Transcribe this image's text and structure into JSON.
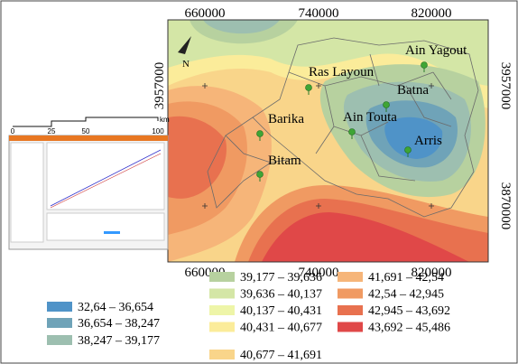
{
  "map": {
    "north": "N",
    "top_ticks": [
      660000,
      740000,
      820000
    ],
    "bottom_ticks": [
      660000,
      740000,
      820000
    ],
    "left_ticks": [
      3957000
    ],
    "right_ticks": [
      3957000,
      3870000
    ],
    "cities": [
      "Ain Yagout",
      "Ras Layoun",
      "Batna",
      "Barika",
      "Ain Touta",
      "Arris",
      "Bitam"
    ],
    "scale_bar": {
      "ticks": [
        0,
        25,
        50,
        100
      ],
      "unit": "km"
    },
    "legend": [
      {
        "label": "32,64 – 36,654",
        "color": "#4f93c8"
      },
      {
        "label": "36,654 – 38,247",
        "color": "#6fa3b8"
      },
      {
        "label": "38,247 – 39,177",
        "color": "#9dbfb0"
      },
      {
        "label": "39,177 – 39,636",
        "color": "#b7d19f"
      },
      {
        "label": "39,636 – 40,137",
        "color": "#d4e6a6"
      },
      {
        "label": "40,137 – 40,431",
        "color": "#eef5a8"
      },
      {
        "label": "40,431 – 40,677",
        "color": "#fbec9a"
      },
      {
        "label": "40,677 – 41,691",
        "color": "#f9d58a"
      },
      {
        "label": "41,691 – 42,54",
        "color": "#f6b579"
      },
      {
        "label": "42,54 – 42,945",
        "color": "#f09a62"
      },
      {
        "label": "42,945 – 43,692",
        "color": "#e8714f"
      },
      {
        "label": "43,692 – 45,486",
        "color": "#e04848"
      }
    ]
  }
}
